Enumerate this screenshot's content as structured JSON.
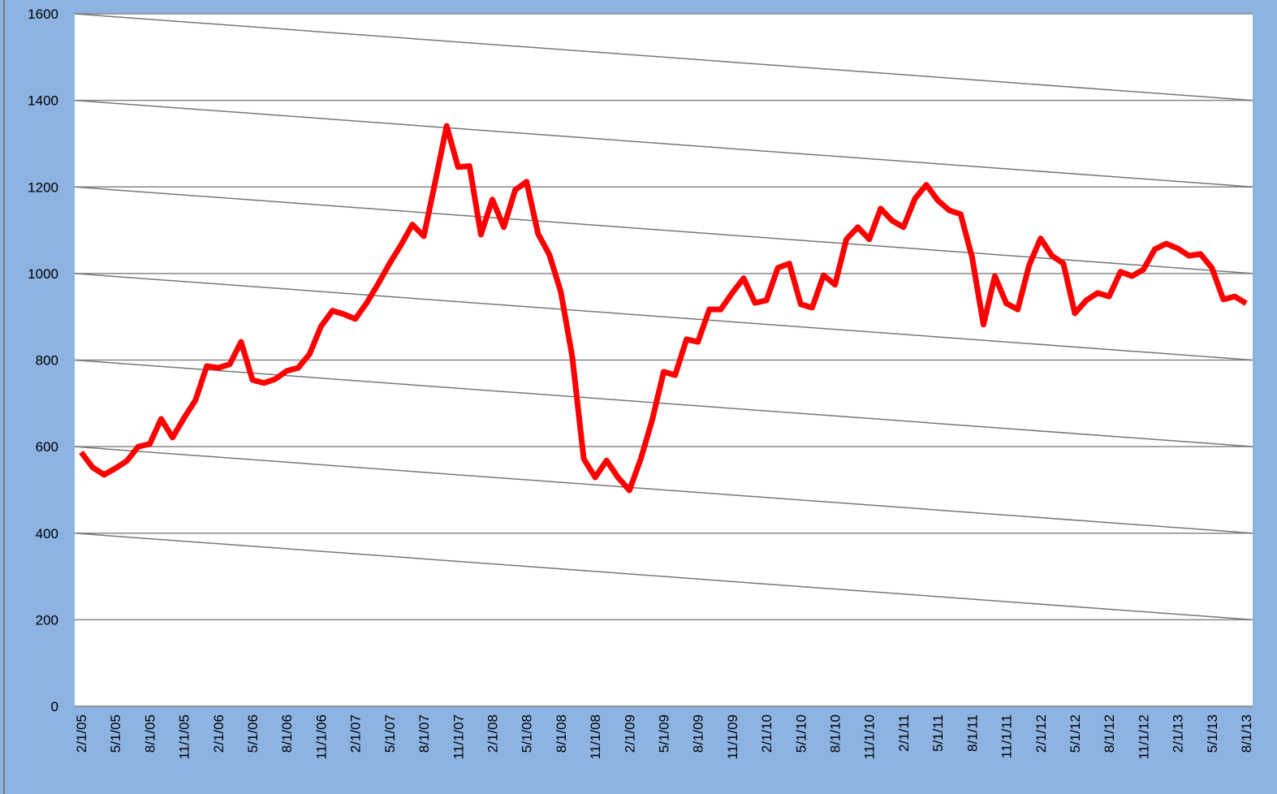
{
  "chart_data": {
    "type": "line",
    "categories": [
      "2/1/05",
      null,
      null,
      "5/1/05",
      null,
      null,
      "8/1/05",
      null,
      null,
      "11/1/05",
      null,
      null,
      "2/1/06",
      null,
      null,
      "5/1/06",
      null,
      null,
      "8/1/06",
      null,
      null,
      "11/1/06",
      null,
      null,
      "2/1/07",
      null,
      null,
      "5/1/07",
      null,
      null,
      "8/1/07",
      null,
      null,
      "11/1/07",
      null,
      null,
      "2/1/08",
      null,
      null,
      "5/1/08",
      null,
      null,
      "8/1/08",
      null,
      null,
      "11/1/08",
      null,
      null,
      "2/1/09",
      null,
      null,
      "5/1/09",
      null,
      null,
      "8/1/09",
      null,
      null,
      "11/1/09",
      null,
      null,
      "2/1/10",
      null,
      null,
      "5/1/10",
      null,
      null,
      "8/1/10",
      null,
      null,
      "11/1/10",
      null,
      null,
      "2/1/11",
      null,
      null,
      "5/1/11",
      null,
      null,
      "8/1/11",
      null,
      null,
      "11/1/11",
      null,
      null,
      "2/1/12",
      null,
      null,
      "5/1/12",
      null,
      null,
      "8/1/12",
      null,
      null,
      "11/1/12",
      null,
      null,
      "2/1/13",
      null,
      null,
      "5/1/13",
      null,
      null,
      "8/1/13"
    ],
    "values": [
      587,
      552,
      535,
      550,
      567,
      600,
      606,
      664,
      621,
      666,
      707,
      786,
      782,
      790,
      842,
      754,
      747,
      756,
      775,
      782,
      814,
      878,
      914,
      906,
      895,
      932,
      976,
      1023,
      1066,
      1113,
      1086,
      1212,
      1341,
      1246,
      1248,
      1090,
      1171,
      1107,
      1193,
      1212,
      1092,
      1043,
      957,
      807,
      572,
      529,
      568,
      529,
      499,
      572,
      662,
      773,
      765,
      848,
      842,
      917,
      917,
      955,
      989,
      932,
      938,
      1013,
      1023,
      929,
      921,
      996,
      974,
      1079,
      1107,
      1079,
      1150,
      1122,
      1107,
      1173,
      1205,
      1169,
      1146,
      1137,
      1038,
      882,
      994,
      931,
      917,
      1019,
      1081,
      1041,
      1023,
      908,
      938,
      955,
      947,
      1004,
      994,
      1009,
      1056,
      1069,
      1058,
      1041,
      1045,
      1013,
      940,
      947,
      931
    ],
    "color": "#ff0000",
    "ylim": [
      0,
      1600
    ],
    "yticks": [
      0,
      200,
      400,
      600,
      800,
      1000,
      1200,
      1400,
      1600
    ],
    "grid": true,
    "trend_lines": [
      [
        1600,
        1400
      ],
      [
        1400,
        1200
      ],
      [
        1200,
        1000
      ],
      [
        1000,
        800
      ],
      [
        800,
        600
      ],
      [
        600,
        400
      ],
      [
        400,
        200
      ]
    ]
  }
}
